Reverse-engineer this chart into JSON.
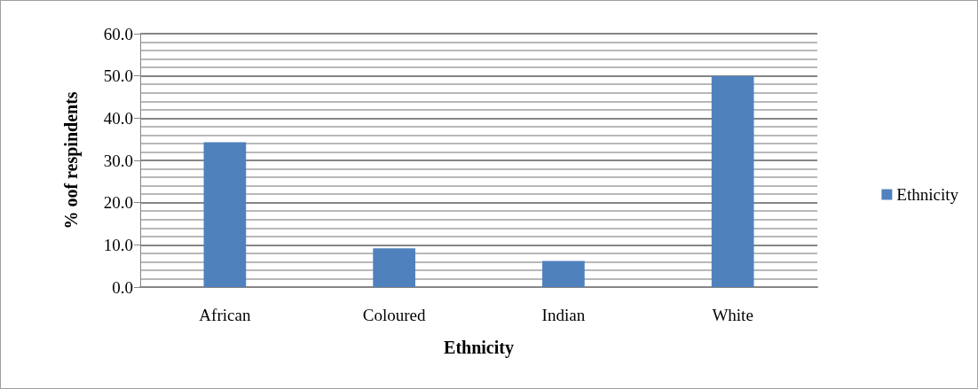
{
  "chart_data": {
    "type": "bar",
    "xlabel": "Ethnicity",
    "ylabel": "% oof respindents",
    "categories": [
      "African",
      "Coloured",
      "Indian",
      "White"
    ],
    "series": [
      {
        "name": "Ethnicity",
        "color": "#4f81bd",
        "values": [
          34.3,
          9.2,
          6.2,
          50.0
        ]
      }
    ],
    "ylim": [
      0,
      60
    ],
    "yticks": [
      {
        "value": 0,
        "label": "0.0"
      },
      {
        "value": 10,
        "label": "10.0"
      },
      {
        "value": 20,
        "label": "20.0"
      },
      {
        "value": 30,
        "label": "30.0"
      },
      {
        "value": 40,
        "label": "40.0"
      },
      {
        "value": 50,
        "label": "50.0"
      },
      {
        "value": 60,
        "label": "60.0"
      }
    ],
    "grid": "y",
    "legend": "right"
  }
}
